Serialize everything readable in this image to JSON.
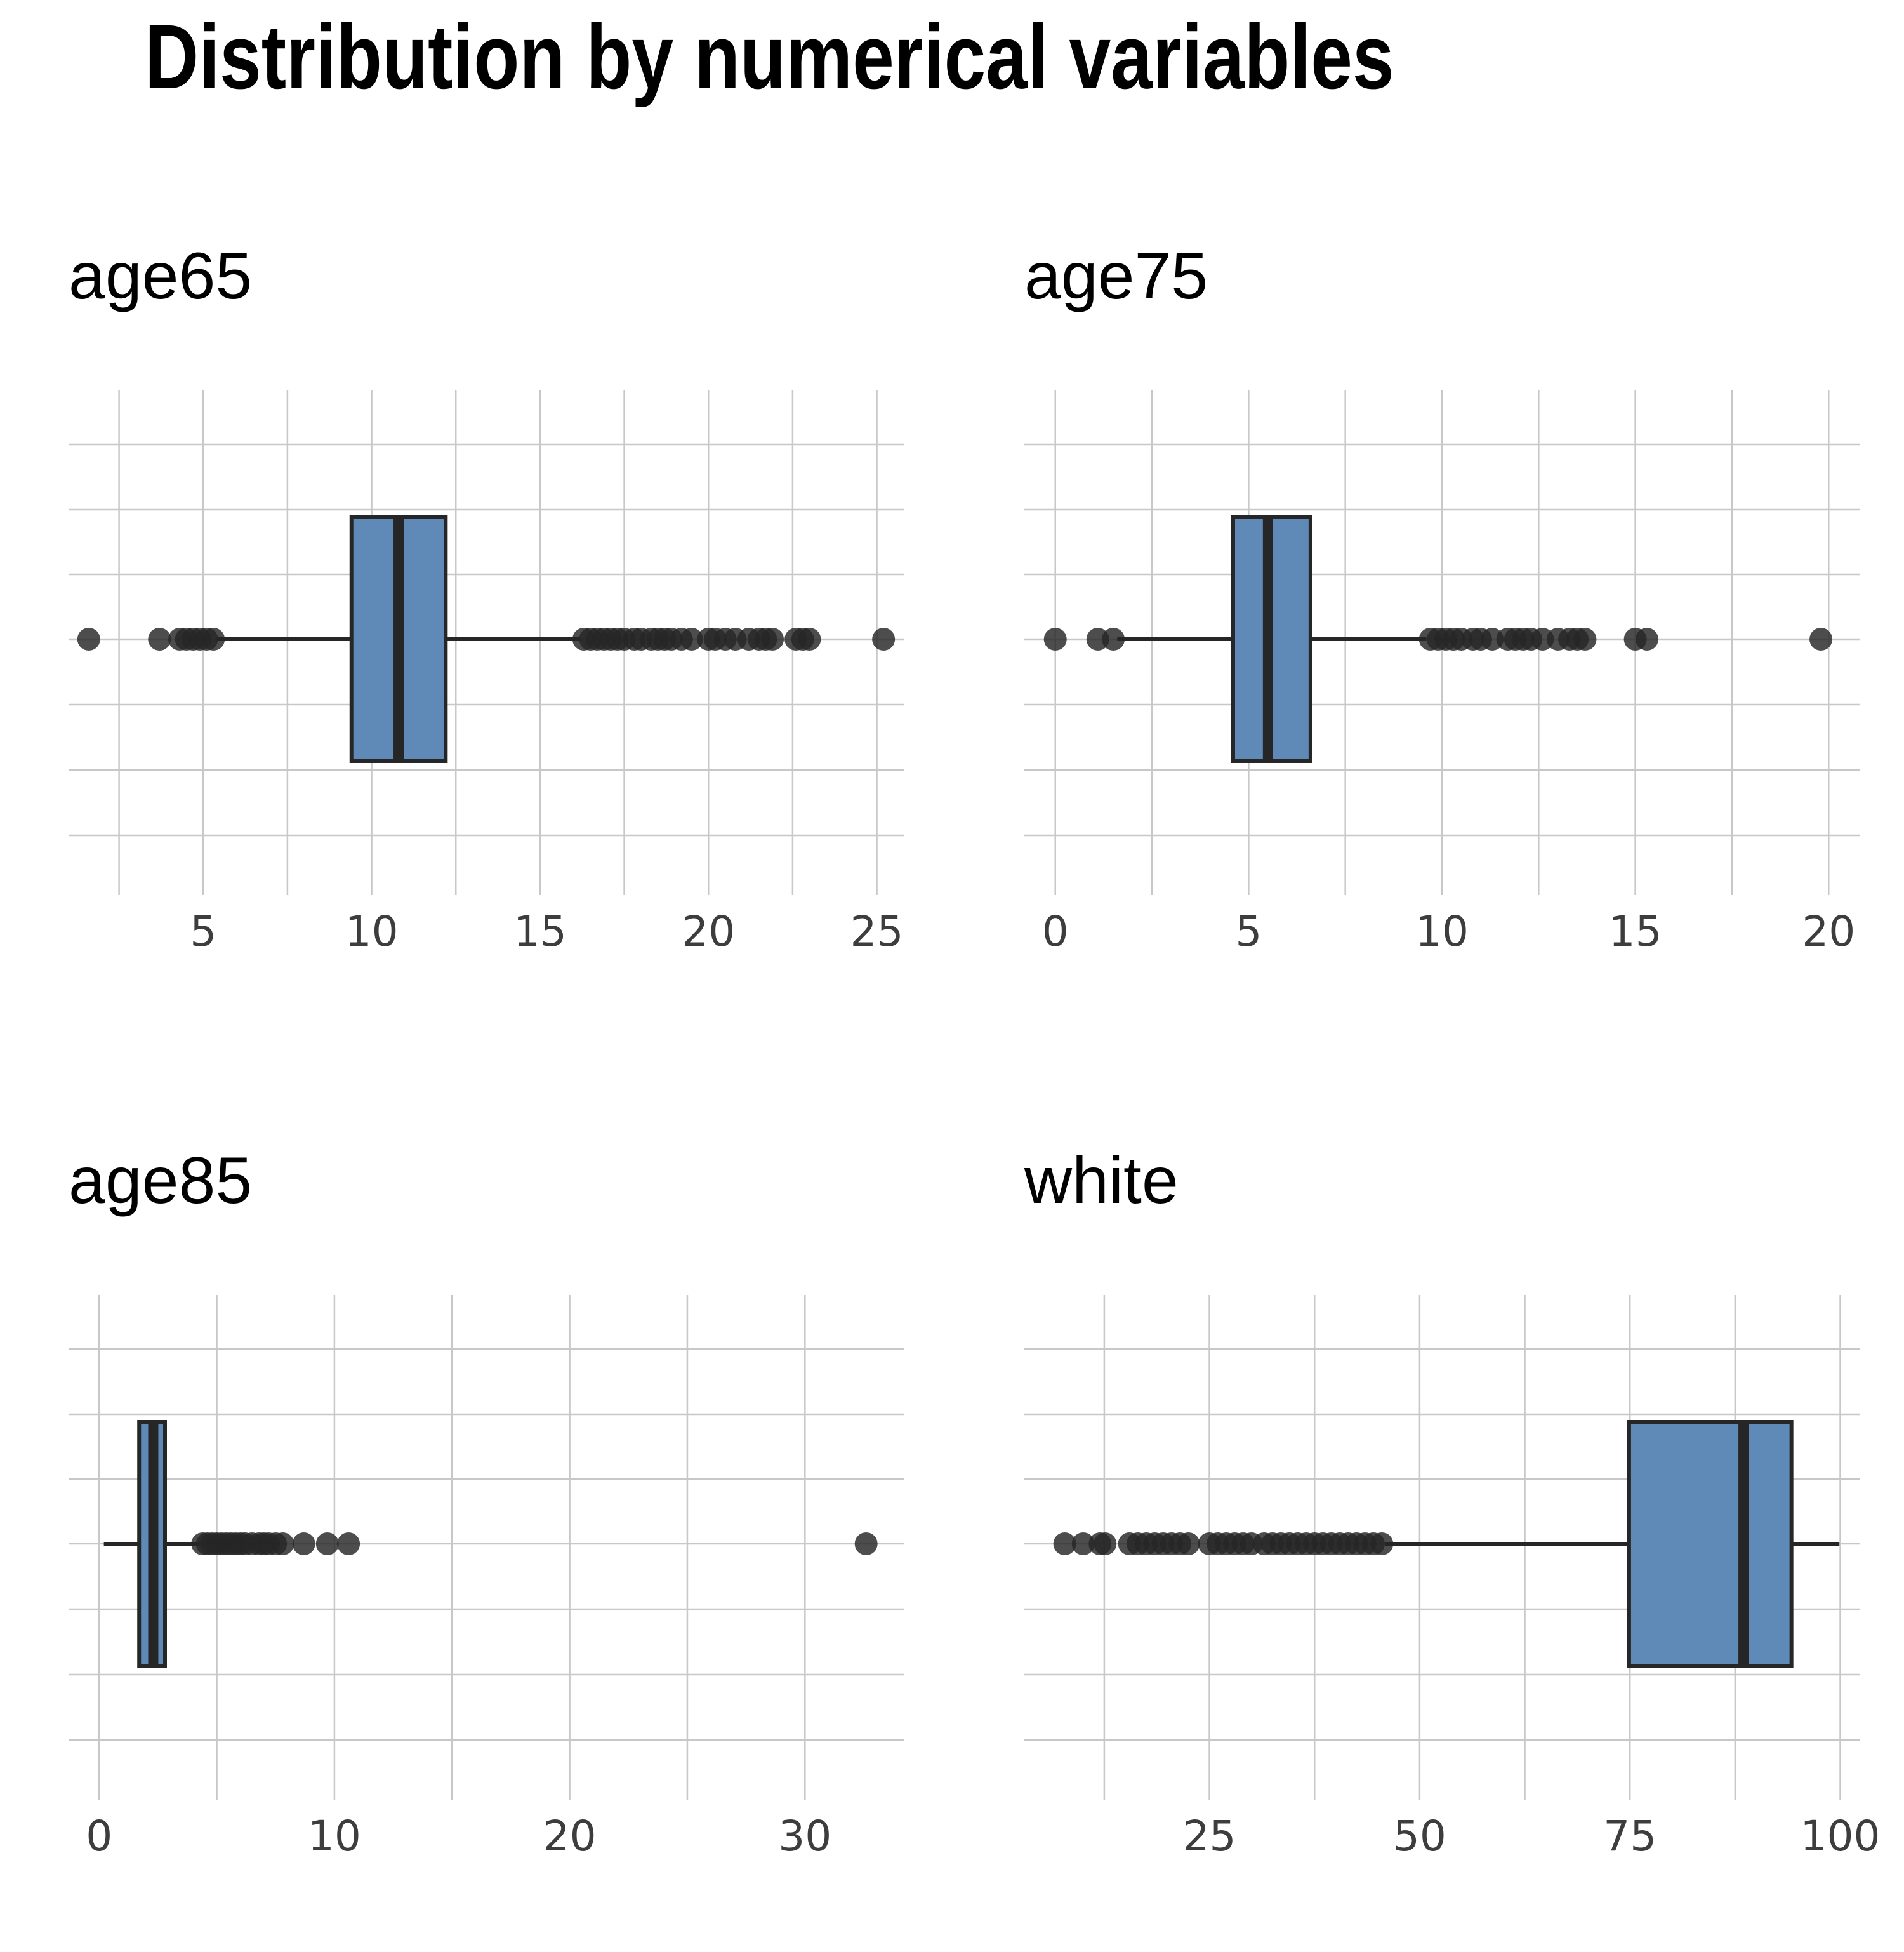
{
  "title": "Distribution by numerical variables",
  "colors": {
    "box_fill": "#5f8ab8",
    "outline": "#262626",
    "grid": "#c8c8c8",
    "tick_text": "#3d3d3d"
  },
  "chart_data": [
    {
      "type": "boxplot",
      "title": "age65",
      "xlim": [
        1.0,
        25.8
      ],
      "ticks": [
        5,
        10,
        15,
        20,
        25
      ],
      "minor_ticks": [
        2.5,
        7.5,
        12.5,
        17.5,
        22.5
      ],
      "box": {
        "q1": 9.4,
        "median": 10.8,
        "q3": 12.2,
        "whisker_low": 5.4,
        "whisker_high": 16.2
      },
      "outliers": [
        1.6,
        3.7,
        4.3,
        4.5,
        4.7,
        4.9,
        5.1,
        5.3,
        16.3,
        16.5,
        16.7,
        16.9,
        17.1,
        17.3,
        17.5,
        17.8,
        18.0,
        18.3,
        18.5,
        18.7,
        18.9,
        19.2,
        19.5,
        20.0,
        20.2,
        20.5,
        20.8,
        21.2,
        21.5,
        21.7,
        21.9,
        22.6,
        22.8,
        23.0,
        25.2
      ],
      "grid": true
    },
    {
      "type": "boxplot",
      "title": "age75",
      "xlim": [
        -0.8,
        20.8
      ],
      "ticks": [
        0,
        5,
        10,
        15,
        20
      ],
      "minor_ticks": [
        2.5,
        7.5,
        12.5,
        17.5
      ],
      "box": {
        "q1": 4.6,
        "median": 5.5,
        "q3": 6.6,
        "whisker_low": 1.6,
        "whisker_high": 9.6
      },
      "outliers": [
        0.0,
        1.1,
        1.5,
        9.7,
        9.9,
        10.1,
        10.3,
        10.5,
        10.8,
        11.0,
        11.3,
        11.7,
        11.9,
        12.1,
        12.3,
        12.6,
        13.0,
        13.3,
        13.5,
        13.7,
        15.0,
        15.3,
        19.8
      ],
      "grid": true
    },
    {
      "type": "boxplot",
      "title": "age85",
      "xlim": [
        -1.3,
        34.2
      ],
      "ticks": [
        0,
        10,
        20,
        30
      ],
      "minor_ticks": [
        5,
        15,
        25
      ],
      "box": {
        "q1": 1.7,
        "median": 2.3,
        "q3": 2.8,
        "whisker_low": 0.2,
        "whisker_high": 4.3
      },
      "outliers": [
        4.4,
        4.6,
        4.8,
        5.0,
        5.2,
        5.4,
        5.6,
        5.8,
        6.0,
        6.2,
        6.5,
        6.8,
        7.0,
        7.2,
        7.5,
        7.8,
        8.7,
        9.7,
        10.6,
        32.6
      ],
      "grid": true
    },
    {
      "type": "boxplot",
      "title": "white",
      "xlim": [
        3.0,
        102.3
      ],
      "ticks": [
        25,
        50,
        75,
        100
      ],
      "minor_ticks": [
        12.5,
        37.5,
        62.5,
        87.5
      ],
      "box": {
        "q1": 74.9,
        "median": 88.5,
        "q3": 94.2,
        "whisker_low": 45.9,
        "whisker_high": 99.9
      },
      "outliers": [
        7.8,
        10.0,
        12.0,
        12.6,
        15.5,
        16.5,
        17.5,
        18.5,
        19.5,
        20.5,
        21.5,
        22.5,
        25.0,
        26.0,
        27.0,
        28.0,
        29.0,
        30.0,
        31.5,
        32.5,
        33.5,
        34.5,
        35.5,
        36.5,
        37.5,
        38.5,
        39.5,
        40.5,
        41.5,
        42.5,
        43.5,
        44.5,
        45.5
      ],
      "grid": true
    }
  ]
}
